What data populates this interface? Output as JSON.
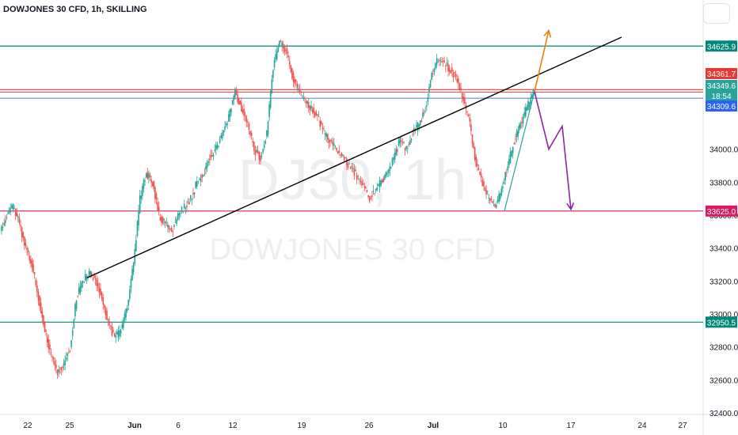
{
  "header": {
    "title": "DOWJONES 30 CFD, 1h, SKILLING"
  },
  "watermark": {
    "line1": "DJ30, 1h",
    "line2": "DOWJONES 30 CFD"
  },
  "colors": {
    "up": "#26a69a",
    "down": "#ef5350",
    "trend": "#000000",
    "resistance": "#00897b",
    "red_line": "#e53935",
    "blue_line": "#5b8def",
    "support": "#d81b60",
    "bullish_arrow": "#f57c00",
    "bearish_arrow": "#8e24aa"
  },
  "chart_data": {
    "type": "candlestick",
    "title": "DOWJONES 30 CFD, 1h, SKILLING",
    "ylim": [
      32400,
      34800
    ],
    "y_ticks": [
      "34000.0",
      "33800.0",
      "33600.0",
      "33400.0",
      "33200.0",
      "33000.0",
      "32800.0",
      "32600.0",
      "32400.0"
    ],
    "x_ticks": [
      "22",
      "25",
      "Jun",
      "6",
      "12",
      "19",
      "26",
      "Jul",
      "10",
      "17",
      "24",
      "27"
    ],
    "price_tags": [
      {
        "label": "34625.9",
        "value": 34625.9,
        "color": "#00897b"
      },
      {
        "label": "34361.7",
        "value": 34361.7,
        "color": "#e53935"
      },
      {
        "label": "34349.6",
        "value": 34349.6,
        "color": "#26a69a"
      },
      {
        "label": "18:54",
        "value": 34318,
        "color": "#26a69a"
      },
      {
        "label": "34309.6",
        "value": 34309.6,
        "color": "#2962ff"
      },
      {
        "label": "33625.0",
        "value": 33625.0,
        "color": "#d81b60"
      },
      {
        "label": "32950.5",
        "value": 32950.5,
        "color": "#00897b"
      }
    ],
    "horizontal_levels": [
      34625.9,
      34361.7,
      34309.6,
      33625.0,
      32950.5
    ],
    "trendline": {
      "from": [
        "May 26",
        33220
      ],
      "to": [
        "Jul 21",
        34680
      ]
    },
    "price_path": [
      33500,
      33600,
      33650,
      33550,
      33400,
      33300,
      33100,
      32900,
      32750,
      32650,
      32700,
      32800,
      33100,
      33200,
      33250,
      33200,
      33100,
      32950,
      32850,
      32900,
      33050,
      33300,
      33700,
      33850,
      33800,
      33600,
      33550,
      33500,
      33600,
      33650,
      33700,
      33800,
      33850,
      33950,
      34000,
      34100,
      34200,
      34350,
      34250,
      34150,
      34000,
      33950,
      34100,
      34500,
      34650,
      34600,
      34450,
      34350,
      34300,
      34250,
      34200,
      34100,
      34050,
      34000,
      33950,
      33900,
      33850,
      33800,
      33700,
      33750,
      33800,
      33850,
      33950,
      34050,
      34000,
      34100,
      34150,
      34250,
      34450,
      34550,
      34520,
      34480,
      34420,
      34300,
      34150,
      33900,
      33800,
      33700,
      33650,
      33750,
      33900,
      34050,
      34150,
      34250,
      34340
    ],
    "projection_up": [
      [
        "Jul 13",
        34350
      ],
      [
        "Jul 14",
        34720
      ]
    ],
    "projection_down": [
      [
        "Jul 13",
        34350
      ],
      [
        "Jul 14",
        34000
      ],
      [
        "Jul 15",
        34140
      ],
      [
        "Jul 17",
        33635
      ]
    ]
  }
}
